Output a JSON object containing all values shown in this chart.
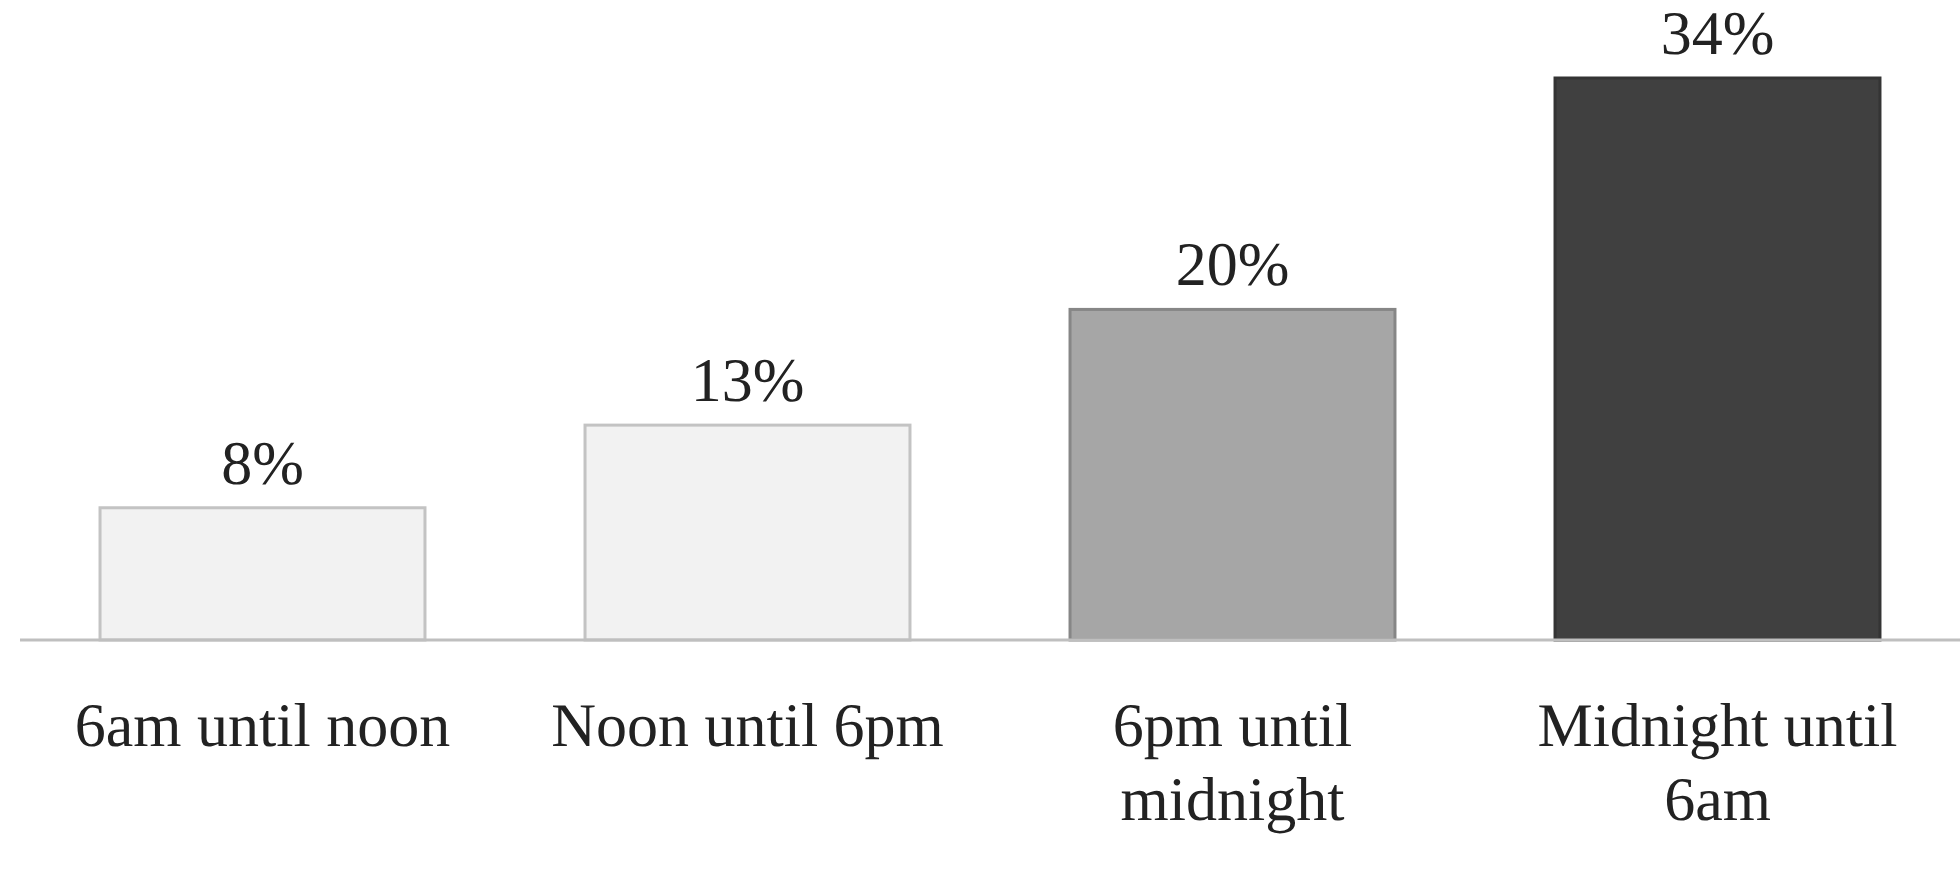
{
  "chart_data": {
    "type": "bar",
    "categories": [
      "6am until noon",
      "Noon until 6pm",
      "6pm until midnight",
      "Midnight until 6am"
    ],
    "values": [
      8,
      13,
      20,
      34
    ],
    "colors": [
      "#f2f2f2",
      "#f2f2f2",
      "#a6a6a6",
      "#404040"
    ],
    "value_labels": [
      "8%",
      "13%",
      "20%",
      "34%"
    ]
  }
}
